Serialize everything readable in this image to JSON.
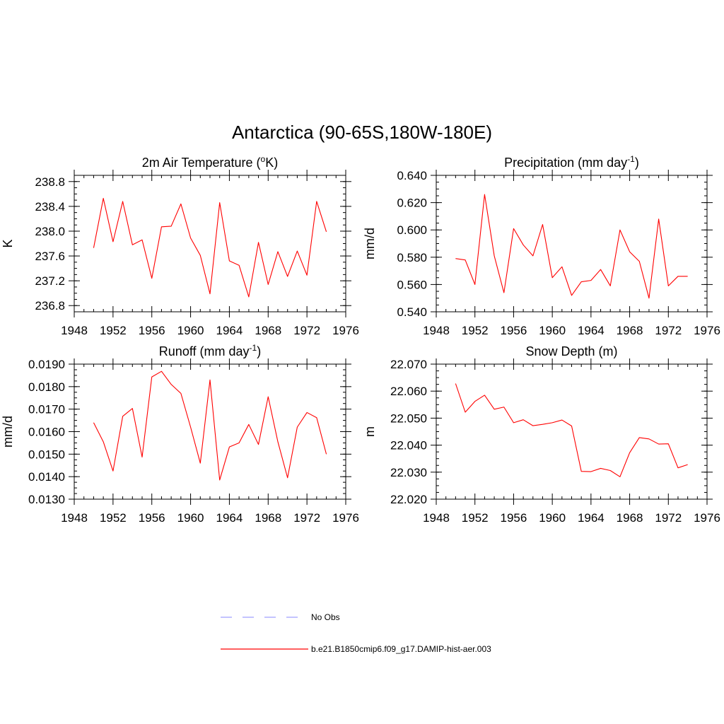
{
  "figure": {
    "title": "Antarctica (90-65S,180W-180E)"
  },
  "legend": {
    "items": [
      {
        "label": "No Obs",
        "color": "#a0a0ff",
        "dash": true
      },
      {
        "label": "b.e21.B1850cmip6.f09_g17.DAMIP-hist-aer.003",
        "color": "#ff0000",
        "dash": false
      }
    ]
  },
  "chart_data": [
    {
      "type": "line",
      "title": "2m Air Temperature (",
      "title_sup": "o",
      "title_after": "K)",
      "ylabel": "K",
      "xlim": [
        1948,
        1976
      ],
      "xticks": [
        "1948",
        "1952",
        "1956",
        "1960",
        "1964",
        "1968",
        "1972",
        "1976"
      ],
      "ylim": [
        236.7,
        238.9
      ],
      "yticks": [
        "236.8",
        "237.2",
        "237.6",
        "238.0",
        "238.4",
        "238.8"
      ],
      "x": [
        1950,
        1951,
        1952,
        1953,
        1954,
        1955,
        1956,
        1957,
        1958,
        1959,
        1960,
        1961,
        1962,
        1963,
        1964,
        1965,
        1966,
        1967,
        1968,
        1969,
        1970,
        1971,
        1972,
        1973,
        1974
      ],
      "series": [
        {
          "color": "#ff0000",
          "values": [
            237.73,
            238.53,
            237.83,
            238.48,
            237.78,
            237.86,
            237.24,
            238.07,
            238.08,
            238.44,
            237.89,
            237.61,
            236.99,
            238.46,
            237.52,
            237.45,
            236.94,
            237.82,
            237.14,
            237.67,
            237.27,
            237.68,
            237.29,
            238.48,
            237.99
          ]
        }
      ]
    },
    {
      "type": "line",
      "title": "Precipitation (mm day",
      "title_sup": "-1",
      "title_after": ")",
      "ylabel": "mm/d",
      "xlim": [
        1948,
        1976
      ],
      "xticks": [
        "1948",
        "1952",
        "1956",
        "1960",
        "1964",
        "1968",
        "1972",
        "1976"
      ],
      "ylim": [
        0.54,
        0.64
      ],
      "yticks": [
        "0.540",
        "0.560",
        "0.580",
        "0.600",
        "0.620",
        "0.640"
      ],
      "x": [
        1950,
        1951,
        1952,
        1953,
        1954,
        1955,
        1956,
        1957,
        1958,
        1959,
        1960,
        1961,
        1962,
        1963,
        1964,
        1965,
        1966,
        1967,
        1968,
        1969,
        1970,
        1971,
        1972,
        1973,
        1974
      ],
      "series": [
        {
          "color": "#ff0000",
          "values": [
            0.579,
            0.578,
            0.56,
            0.626,
            0.581,
            0.554,
            0.601,
            0.589,
            0.581,
            0.604,
            0.565,
            0.573,
            0.552,
            0.562,
            0.563,
            0.571,
            0.559,
            0.6,
            0.584,
            0.577,
            0.55,
            0.608,
            0.559,
            0.566,
            0.566
          ]
        }
      ]
    },
    {
      "type": "line",
      "title": "Runoff (mm day",
      "title_sup": "-1",
      "title_after": ")",
      "ylabel": "mm/d",
      "xlim": [
        1948,
        1976
      ],
      "xticks": [
        "1948",
        "1952",
        "1956",
        "1960",
        "1964",
        "1968",
        "1972",
        "1976"
      ],
      "ylim": [
        0.013,
        0.019
      ],
      "yticks": [
        "0.0130",
        "0.0140",
        "0.0150",
        "0.0160",
        "0.0170",
        "0.0180",
        "0.0190"
      ],
      "x": [
        1950,
        1951,
        1952,
        1953,
        1954,
        1955,
        1956,
        1957,
        1958,
        1959,
        1960,
        1961,
        1962,
        1963,
        1964,
        1965,
        1966,
        1967,
        1968,
        1969,
        1970,
        1971,
        1972,
        1973,
        1974
      ],
      "series": [
        {
          "color": "#ff0000",
          "values": [
            0.0164,
            0.01555,
            0.01425,
            0.01668,
            0.01703,
            0.01487,
            0.01843,
            0.01868,
            0.0181,
            0.0177,
            0.0162,
            0.0146,
            0.0183,
            0.01385,
            0.01532,
            0.0155,
            0.01632,
            0.01543,
            0.01755,
            0.01555,
            0.01395,
            0.0162,
            0.01685,
            0.01662,
            0.015
          ]
        }
      ]
    },
    {
      "type": "line",
      "title": "Snow Depth (m)",
      "title_sup": "",
      "title_after": "",
      "ylabel": "m",
      "xlim": [
        1948,
        1976
      ],
      "xticks": [
        "1948",
        "1952",
        "1956",
        "1960",
        "1964",
        "1968",
        "1972",
        "1976"
      ],
      "ylim": [
        22.02,
        22.07
      ],
      "yticks": [
        "22.020",
        "22.030",
        "22.040",
        "22.050",
        "22.060",
        "22.070"
      ],
      "x": [
        1950,
        1951,
        1952,
        1953,
        1954,
        1955,
        1956,
        1957,
        1958,
        1959,
        1960,
        1961,
        1962,
        1963,
        1964,
        1965,
        1966,
        1967,
        1968,
        1969,
        1970,
        1971,
        1972,
        1973,
        1974
      ],
      "series": [
        {
          "color": "#ff0000",
          "values": [
            22.0628,
            22.0522,
            22.0562,
            22.0585,
            22.0533,
            22.0541,
            22.0483,
            22.0494,
            22.0472,
            22.0477,
            22.0483,
            22.0493,
            22.0471,
            22.0303,
            22.0302,
            22.0314,
            22.0306,
            22.0283,
            22.0372,
            22.0428,
            22.0423,
            22.0404,
            22.0405,
            22.0316,
            22.0328
          ]
        }
      ]
    }
  ]
}
